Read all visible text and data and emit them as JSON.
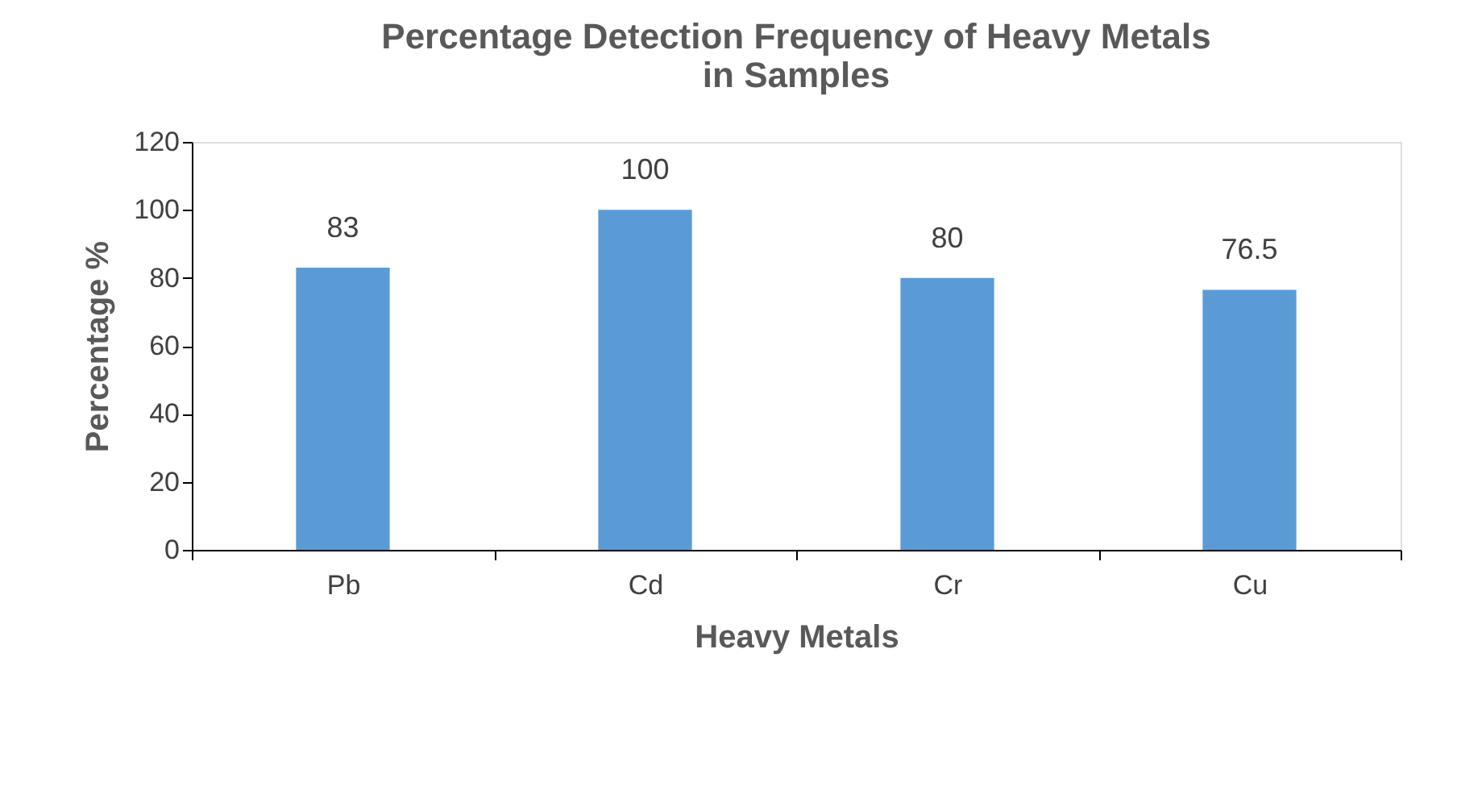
{
  "chart_data": {
    "type": "bar",
    "title": "Percentage Detection Frequency of Heavy Metals in Samples",
    "xlabel": "Heavy Metals",
    "ylabel": "Percentage %",
    "categories": [
      "Pb",
      "Cd",
      "Cr",
      "Cu"
    ],
    "values": [
      83,
      100,
      80,
      76.5
    ],
    "color": "#5b9bd5",
    "ylim": [
      0,
      120
    ],
    "yticks": [
      0,
      20,
      40,
      60,
      80,
      100,
      120
    ],
    "grid": false,
    "data_labels": true
  }
}
